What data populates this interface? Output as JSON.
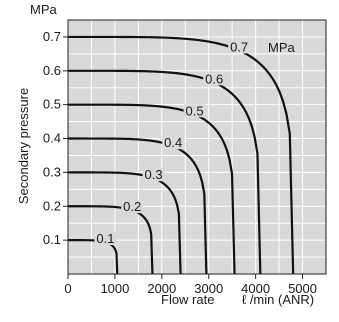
{
  "chart_data": {
    "type": "line",
    "title": "",
    "legend_title": "MPa",
    "xlabel": "Flow rate",
    "xunit": "ℓ /min (ANR)",
    "ylabel": "Secondary pressure",
    "yunit": "MPa",
    "xlim": [
      0,
      5500
    ],
    "ylim": [
      0,
      0.75
    ],
    "xticks": [
      0,
      1000,
      2000,
      3000,
      4000,
      5000
    ],
    "xtick_labels": [
      "0",
      "1000",
      "2000",
      "3000",
      "4000",
      "5000"
    ],
    "yticks": [
      0.1,
      0.2,
      0.3,
      0.4,
      0.5,
      0.6,
      0.7
    ],
    "ytick_labels": [
      "0.1",
      "0.2",
      "0.3",
      "0.4",
      "0.5",
      "0.6",
      "0.7"
    ],
    "grid": true,
    "plot_background": "#d9d9d9",
    "line_color": "#111111",
    "series": [
      {
        "name": "0.1",
        "set_pressure": 0.1,
        "max_flow": 1050
      },
      {
        "name": "0.2",
        "set_pressure": 0.2,
        "max_flow": 1800
      },
      {
        "name": "0.3",
        "set_pressure": 0.3,
        "max_flow": 2400
      },
      {
        "name": "0.4",
        "set_pressure": 0.4,
        "max_flow": 2950
      },
      {
        "name": "0.5",
        "set_pressure": 0.5,
        "max_flow": 3550
      },
      {
        "name": "0.6",
        "set_pressure": 0.6,
        "max_flow": 4100
      },
      {
        "name": "0.7",
        "set_pressure": 0.7,
        "max_flow": 4800
      }
    ]
  }
}
